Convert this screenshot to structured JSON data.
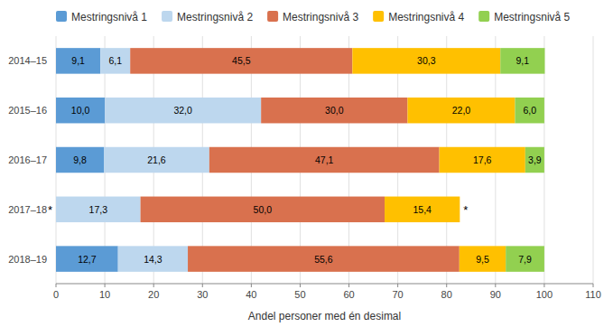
{
  "chart_data": {
    "type": "bar",
    "orientation": "horizontal",
    "stacked": true,
    "data_labels": true,
    "grid": true,
    "legend": "top",
    "x_label": "Andel personer med én desimal",
    "categories": [
      "2014–15",
      "2015–16",
      "2016–17",
      "2017–18",
      "2018–19"
    ],
    "series": [
      {
        "name": "Mestringsnivå 1",
        "color": "#5b9bd5",
        "values": [
          9.1,
          10.0,
          9.8,
          0.0,
          12.7
        ],
        "value_labels": [
          "9,1",
          "10,0",
          "9,8",
          null,
          "12,7"
        ]
      },
      {
        "name": "Mestringsnivå 2",
        "color": "#bdd7ee",
        "values": [
          6.1,
          32.0,
          21.6,
          17.3,
          14.3
        ],
        "value_labels": [
          "6,1",
          "32,0",
          "21,6",
          "17,3",
          "14,3"
        ]
      },
      {
        "name": "Mestringsnivå 3",
        "color": "#d9714e",
        "values": [
          45.5,
          30.0,
          47.1,
          50.0,
          55.6
        ],
        "value_labels": [
          "45,5",
          "30,0",
          "47,1",
          "50,0",
          "55,6"
        ]
      },
      {
        "name": "Mestringsnivå 4",
        "color": "#ffc000",
        "values": [
          30.3,
          22.0,
          17.6,
          15.4,
          9.5
        ],
        "value_labels": [
          "30,3",
          "22,0",
          "17,6",
          "15,4",
          "9,5"
        ]
      },
      {
        "name": "Mestringsnivå 5",
        "color": "#92d050",
        "values": [
          9.1,
          6.0,
          3.9,
          0.0,
          7.9
        ],
        "value_labels": [
          "9,1",
          "6,0",
          "3,9",
          null,
          "7,9"
        ]
      }
    ],
    "annotations": [
      {
        "text": "*",
        "category": "2017–18",
        "series": "Mestringsnivå 1"
      },
      {
        "text": "*",
        "category": "2017–18",
        "series": "Mestringsnivå 5"
      }
    ],
    "xlim": [
      0,
      110
    ],
    "xticks": [
      0,
      10,
      20,
      30,
      40,
      50,
      60,
      70,
      80,
      90,
      100,
      110
    ]
  }
}
